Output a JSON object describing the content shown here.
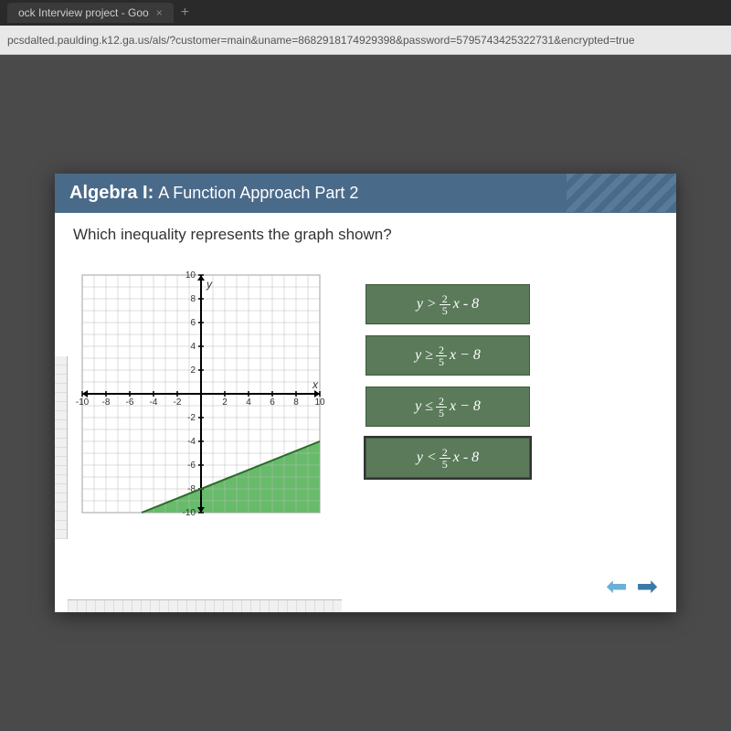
{
  "browser": {
    "tab_title": "ock Interview project - Goo",
    "url": "pcsdalted.paulding.k12.ga.us/als/?customer=main&uname=8682918174929398&password=5795743425322731&encrypted=true"
  },
  "lesson": {
    "course_bold": "Algebra I:",
    "course_light": "A Function Approach Part 2",
    "question": "Which inequality represents the graph shown?"
  },
  "graph": {
    "xmin": -10,
    "xmax": 10,
    "ymin": -10,
    "ymax": 10,
    "xtick_step": 2,
    "ytick_step": 2,
    "grid_color": "#bbbbbb",
    "axis_color": "#000000",
    "bg_color": "#ffffff",
    "shade_color": "#4caf50",
    "line_slope": 0.4,
    "line_intercept": -8,
    "line_solid": true,
    "shade_below": true,
    "xlabel": "x",
    "ylabel": "y",
    "label_fontsize": 12
  },
  "answers": {
    "opt1": {
      "pre": "y >",
      "num": "2",
      "den": "5",
      "post": "x - 8"
    },
    "opt2": {
      "pre": "y ≥",
      "num": "2",
      "den": "5",
      "post": "x − 8"
    },
    "opt3": {
      "pre": "y ≤",
      "num": "2",
      "den": "5",
      "post": "x − 8"
    },
    "opt4": {
      "pre": "y <",
      "num": "2",
      "den": "5",
      "post": "x - 8"
    }
  }
}
